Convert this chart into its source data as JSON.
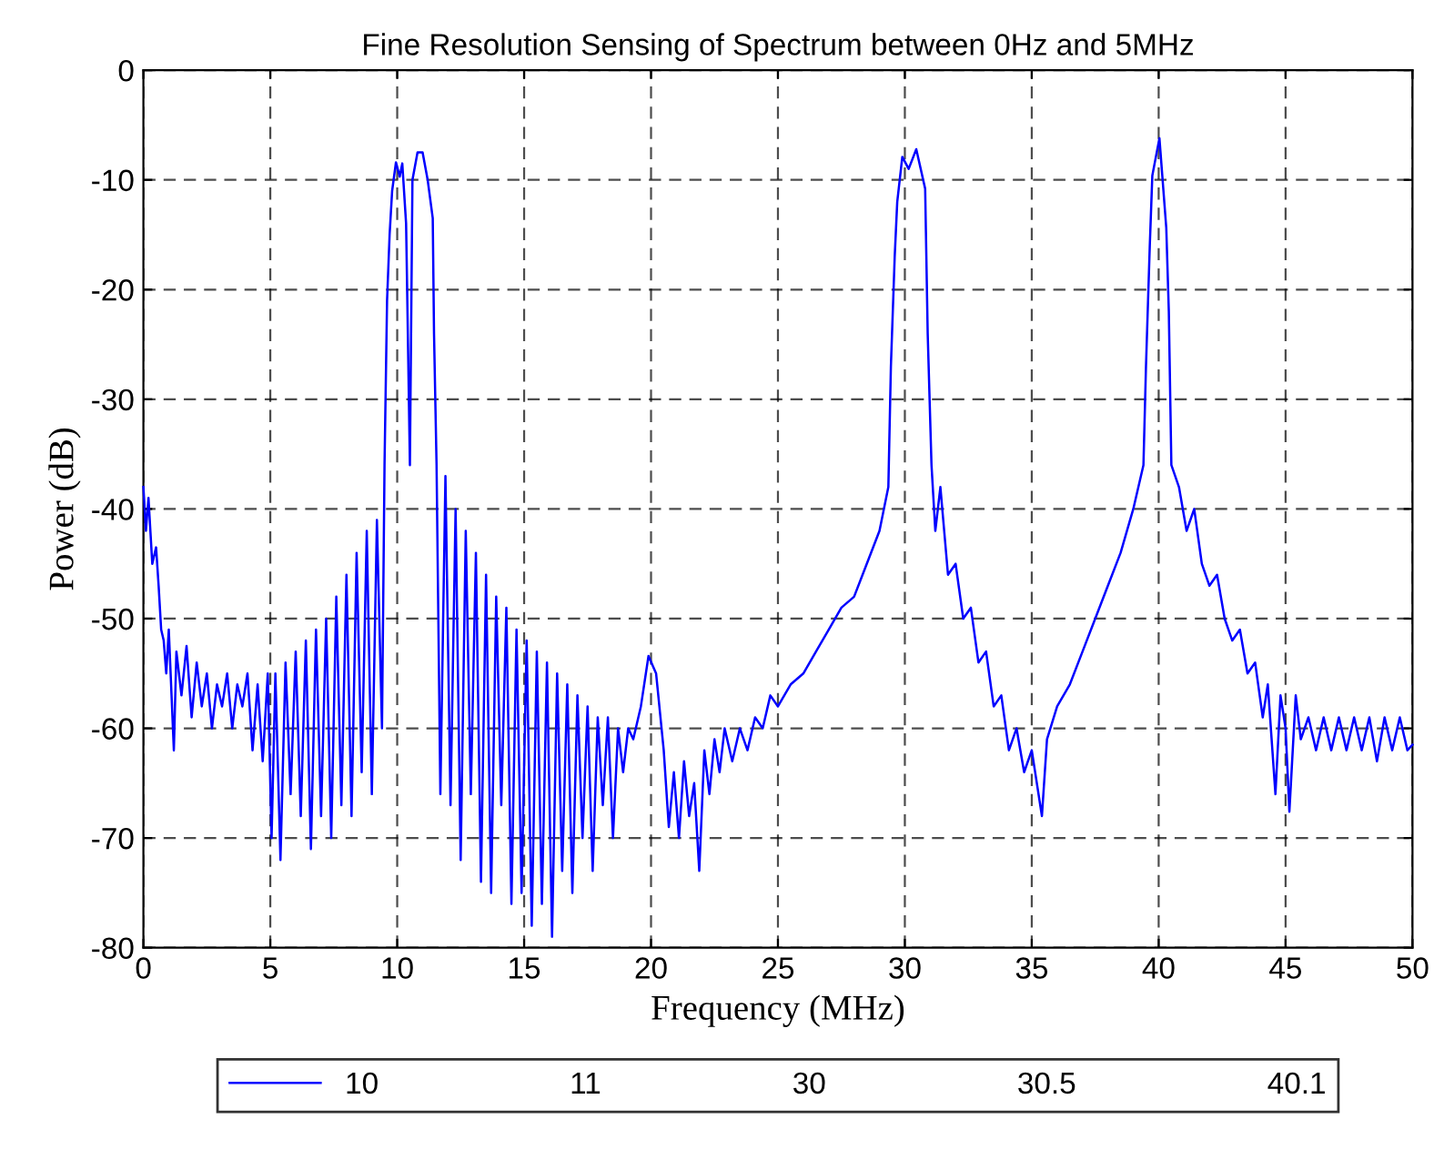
{
  "chart_data": {
    "type": "line",
    "title": "Fine Resolution Sensing of Spectrum between 0Hz and 5MHz",
    "xlabel": "Frequency (MHz)",
    "ylabel": "Power (dB)",
    "x": [
      0,
      0.1,
      0.2,
      0.35,
      0.5,
      0.6,
      0.7,
      0.8,
      0.9,
      1.0,
      1.2,
      1.3,
      1.5,
      1.7,
      1.9,
      2.1,
      2.3,
      2.5,
      2.7,
      2.9,
      3.1,
      3.3,
      3.5,
      3.7,
      3.9,
      4.1,
      4.3,
      4.5,
      4.7,
      4.9,
      5.05,
      5.2,
      5.4,
      5.6,
      5.8,
      6.0,
      6.2,
      6.4,
      6.6,
      6.8,
      7.0,
      7.2,
      7.4,
      7.6,
      7.8,
      8.0,
      8.2,
      8.4,
      8.6,
      8.8,
      9.0,
      9.2,
      9.4,
      9.5,
      9.6,
      9.7,
      9.8,
      9.95,
      10.1,
      10.2,
      10.35,
      10.5,
      10.6,
      10.8,
      11.0,
      11.2,
      11.4,
      11.45,
      11.55,
      11.7,
      11.9,
      12.1,
      12.3,
      12.5,
      12.7,
      12.9,
      13.1,
      13.3,
      13.5,
      13.7,
      13.9,
      14.1,
      14.3,
      14.5,
      14.7,
      14.9,
      15.1,
      15.3,
      15.5,
      15.7,
      15.9,
      16.1,
      16.3,
      16.5,
      16.7,
      16.9,
      17.1,
      17.3,
      17.5,
      17.7,
      17.9,
      18.1,
      18.3,
      18.5,
      18.7,
      18.9,
      19.1,
      19.3,
      19.6,
      19.9,
      20.2,
      20.5,
      20.7,
      20.9,
      21.1,
      21.3,
      21.5,
      21.7,
      21.9,
      22.1,
      22.3,
      22.5,
      22.7,
      22.9,
      23.2,
      23.5,
      23.8,
      24.1,
      24.4,
      24.7,
      25.0,
      25.5,
      26.0,
      26.5,
      27.0,
      27.5,
      28.0,
      28.5,
      29.0,
      29.35,
      29.45,
      29.6,
      29.7,
      29.9,
      30.15,
      30.45,
      30.8,
      30.9,
      31.05,
      31.2,
      31.4,
      31.7,
      32.0,
      32.3,
      32.6,
      32.9,
      33.2,
      33.5,
      33.8,
      34.1,
      34.4,
      34.7,
      35.0,
      35.4,
      35.6,
      36.0,
      36.5,
      37.0,
      37.5,
      38.0,
      38.5,
      39.0,
      39.4,
      39.5,
      39.65,
      39.75,
      40.03,
      40.3,
      40.4,
      40.5,
      40.8,
      41.1,
      41.4,
      41.7,
      42.0,
      42.3,
      42.6,
      42.9,
      43.2,
      43.5,
      43.8,
      44.1,
      44.3,
      44.6,
      44.8,
      45.0,
      45.15,
      45.4,
      45.6,
      45.9,
      46.2,
      46.5,
      46.8,
      47.1,
      47.4,
      47.7,
      48.0,
      48.3,
      48.6,
      48.9,
      49.2,
      49.5,
      49.8,
      50
    ],
    "series": [
      {
        "name": "10",
        "color": "#0000ff",
        "values": [
          -38,
          -42,
          -39,
          -45,
          -43.5,
          -47,
          -51,
          -52,
          -55,
          -51,
          -62,
          -53,
          -57,
          -52.5,
          -59,
          -54,
          -58,
          -55,
          -60,
          -56,
          -58,
          -55,
          -60,
          -56,
          -58,
          -55,
          -62,
          -56,
          -63,
          -55,
          -70,
          -55,
          -72,
          -54,
          -66,
          -53,
          -68,
          -52,
          -71,
          -51,
          -68,
          -50,
          -70,
          -48,
          -67,
          -46,
          -68,
          -44,
          -64,
          -42,
          -66,
          -41,
          -60,
          -36,
          -21,
          -15,
          -11,
          -8.4,
          -9.7,
          -8.5,
          -14,
          -36,
          -10,
          -7.5,
          -7.5,
          -10,
          -13.5,
          -24,
          -36,
          -66,
          -37,
          -67,
          -40,
          -72,
          -42,
          -66,
          -44,
          -74,
          -46,
          -75,
          -48,
          -67,
          -49,
          -76,
          -51,
          -75,
          -52,
          -78,
          -53,
          -76,
          -54,
          -79,
          -55,
          -73,
          -56,
          -75,
          -57,
          -70,
          -58,
          -73,
          -59,
          -67,
          -59,
          -70,
          -60,
          -64,
          -60,
          -61,
          -58,
          -53.4,
          -55,
          -62,
          -69,
          -64,
          -70,
          -63,
          -68,
          -65,
          -73,
          -62,
          -66,
          -61,
          -64,
          -60,
          -63,
          -60,
          -62,
          -59,
          -60,
          -57,
          -58,
          -56,
          -55,
          -53,
          -51,
          -49,
          -48,
          -45,
          -42,
          -38,
          -27,
          -17,
          -12,
          -7.9,
          -9,
          -7.2,
          -10.8,
          -24,
          -36,
          -42,
          -38,
          -46,
          -45,
          -50,
          -49,
          -54,
          -53,
          -58,
          -57,
          -62,
          -60,
          -64,
          -62,
          -68,
          -61,
          -58,
          -56,
          -53,
          -50,
          -47,
          -44,
          -40,
          -36,
          -27,
          -16,
          -9.6,
          -6.2,
          -14.4,
          -22,
          -36,
          -38,
          -42,
          -40,
          -45,
          -47,
          -46,
          -50,
          -52,
          -51,
          -55,
          -54,
          -59,
          -56,
          -66,
          -57,
          -60,
          -67.6,
          -57,
          -61,
          -59,
          -62,
          -59,
          -62,
          -59,
          -62,
          -59,
          -62,
          -59,
          -63,
          -59,
          -62,
          -59,
          -62,
          -61.5
        ]
      }
    ],
    "annotations": [
      "11",
      "30",
      "30.5",
      "40.1"
    ],
    "xlim": [
      0,
      50
    ],
    "xticks": [
      0,
      5,
      10,
      15,
      20,
      25,
      30,
      35,
      40,
      45,
      50
    ],
    "ylim": [
      -80,
      0
    ],
    "yticks": [
      -80,
      -70,
      -60,
      -50,
      -40,
      -30,
      -20,
      -10,
      0
    ],
    "grid": true,
    "legend": "bottom",
    "line_style": "solid",
    "marker": "none"
  }
}
